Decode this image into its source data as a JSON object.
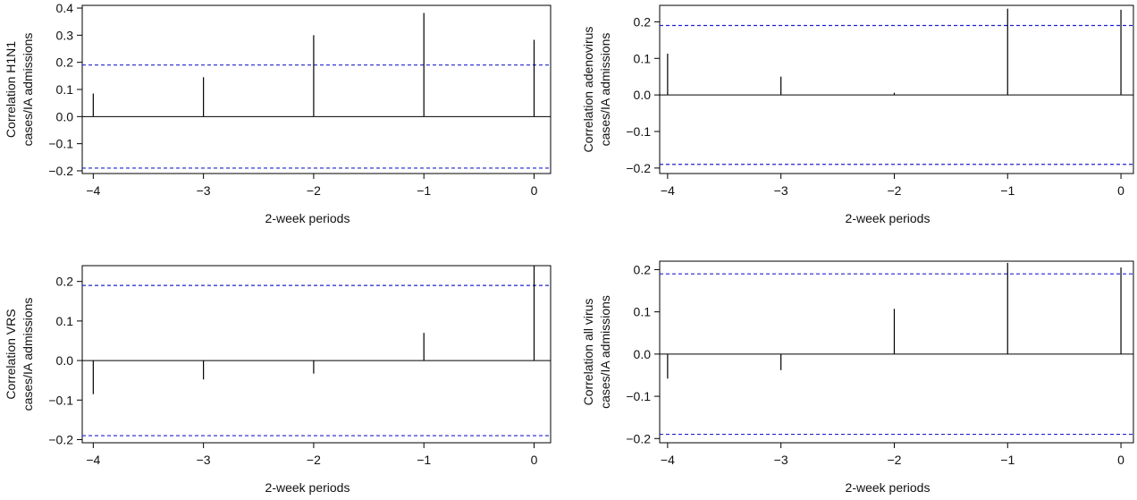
{
  "colors": {
    "stem": "#000000",
    "threshold": "#2222cc",
    "axis": "#000000"
  },
  "chart_data": [
    {
      "type": "bar",
      "subtype": "ccf-stem",
      "ylabel_lines": [
        "Correlation H1N1",
        "cases/IA admissions"
      ],
      "xlabel": "2-week periods",
      "x": [
        -4,
        -3,
        -2,
        -1,
        0
      ],
      "values": [
        0.085,
        0.145,
        0.3,
        0.382,
        0.283
      ],
      "threshold": 0.19,
      "xlim": [
        -4.1,
        0.15
      ],
      "ylim": [
        -0.21,
        0.41
      ],
      "yticks": [
        -0.2,
        -0.1,
        0.0,
        0.1,
        0.2,
        0.3,
        0.4
      ],
      "ytick_labels": [
        "−0.2",
        "−0.1",
        "0.0",
        "0.1",
        "0.2",
        "0.3",
        "0.4"
      ],
      "xticks": [
        -4,
        -3,
        -2,
        -1,
        0
      ],
      "xtick_labels": [
        "−4",
        "−3",
        "−2",
        "−1",
        "0"
      ],
      "zero_line": true
    },
    {
      "type": "bar",
      "subtype": "ccf-stem",
      "ylabel_lines": [
        "Correlation adenovirus",
        "cases/IA admissions"
      ],
      "xlabel": "2-week periods",
      "x": [
        -4,
        -3,
        -2,
        -1,
        0
      ],
      "values": [
        0.113,
        0.05,
        0.006,
        0.236,
        0.233
      ],
      "threshold": 0.19,
      "xlim": [
        -4.07,
        0.11
      ],
      "ylim": [
        -0.215,
        0.245
      ],
      "yticks": [
        -0.2,
        -0.1,
        0.0,
        0.1,
        0.2
      ],
      "ytick_labels": [
        "−0.2",
        "−0.1",
        "0.0",
        "0.1",
        "0.2"
      ],
      "xticks": [
        -4,
        -3,
        -2,
        -1,
        0
      ],
      "xtick_labels": [
        "−4",
        "−3",
        "−2",
        "−1",
        "0"
      ],
      "zero_line": true
    },
    {
      "type": "bar",
      "subtype": "ccf-stem",
      "ylabel_lines": [
        "Correlation VRS",
        "cases/IA admissions"
      ],
      "xlabel": "2-week periods",
      "x": [
        -4,
        -3,
        -2,
        -1,
        0
      ],
      "values": [
        -0.085,
        -0.048,
        -0.033,
        0.07,
        0.24
      ],
      "threshold": 0.19,
      "xlim": [
        -4.1,
        0.15
      ],
      "ylim": [
        -0.208,
        0.24
      ],
      "yticks": [
        -0.2,
        -0.1,
        0.0,
        0.1,
        0.2
      ],
      "ytick_labels": [
        "−0.2",
        "−0.1",
        "0.0",
        "0.1",
        "0.2"
      ],
      "xticks": [
        -4,
        -3,
        -2,
        -1,
        0
      ],
      "xtick_labels": [
        "−4",
        "−3",
        "−2",
        "−1",
        "0"
      ],
      "zero_line": true
    },
    {
      "type": "bar",
      "subtype": "ccf-stem",
      "ylabel_lines": [
        "Correlation all virus",
        "cases/IA admissions"
      ],
      "xlabel": "2-week periods",
      "x": [
        -4,
        -3,
        -2,
        -1,
        0
      ],
      "values": [
        -0.058,
        -0.038,
        0.107,
        0.216,
        0.205
      ],
      "threshold": 0.19,
      "xlim": [
        -4.07,
        0.11
      ],
      "ylim": [
        -0.21,
        0.22
      ],
      "yticks": [
        -0.2,
        -0.1,
        0.0,
        0.1,
        0.2
      ],
      "ytick_labels": [
        "−0.2",
        "−0.1",
        "0.0",
        "0.1",
        "0.2"
      ],
      "xticks": [
        -4,
        -3,
        -2,
        -1,
        0
      ],
      "xtick_labels": [
        "−4",
        "−3",
        "−2",
        "−1",
        "0"
      ],
      "zero_line": true
    }
  ]
}
